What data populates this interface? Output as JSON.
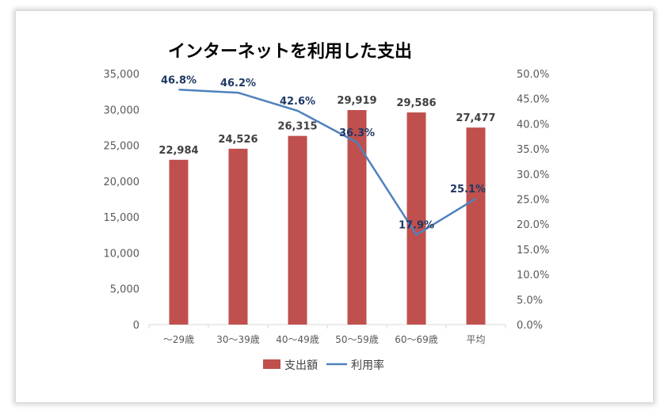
{
  "chart_data": {
    "type": "bar",
    "title": "インターネットを利用した支出",
    "categories": [
      "～29歳",
      "30～39歳",
      "40～49歳",
      "50～59歳",
      "60～69歳",
      "平均"
    ],
    "series": [
      {
        "name": "支出額",
        "kind": "bar",
        "axis": "left",
        "color": "#c0504d",
        "values": [
          22984,
          24526,
          26315,
          29919,
          29586,
          27477
        ],
        "labels": [
          "22,984",
          "24,526",
          "26,315",
          "29,919",
          "29,586",
          "27,477"
        ]
      },
      {
        "name": "利用率",
        "kind": "line",
        "axis": "right",
        "color": "#4f81bd",
        "values": [
          46.8,
          46.2,
          42.6,
          36.3,
          17.9,
          25.1
        ],
        "labels": [
          "46.8%",
          "46.2%",
          "42.6%",
          "36.3%",
          "17.9%",
          "25.1%"
        ]
      }
    ],
    "y_left": {
      "min": 0,
      "max": 35000,
      "ticks": [
        "0",
        "5,000",
        "10,000",
        "15,000",
        "20,000",
        "25,000",
        "30,000",
        "35,000"
      ]
    },
    "y_right": {
      "min": 0,
      "max": 50,
      "ticks": [
        "0.0%",
        "5.0%",
        "10.0%",
        "15.0%",
        "20.0%",
        "25.0%",
        "30.0%",
        "35.0%",
        "40.0%",
        "45.0%",
        "50.0%"
      ]
    },
    "grid": false,
    "legend": "bottom"
  }
}
